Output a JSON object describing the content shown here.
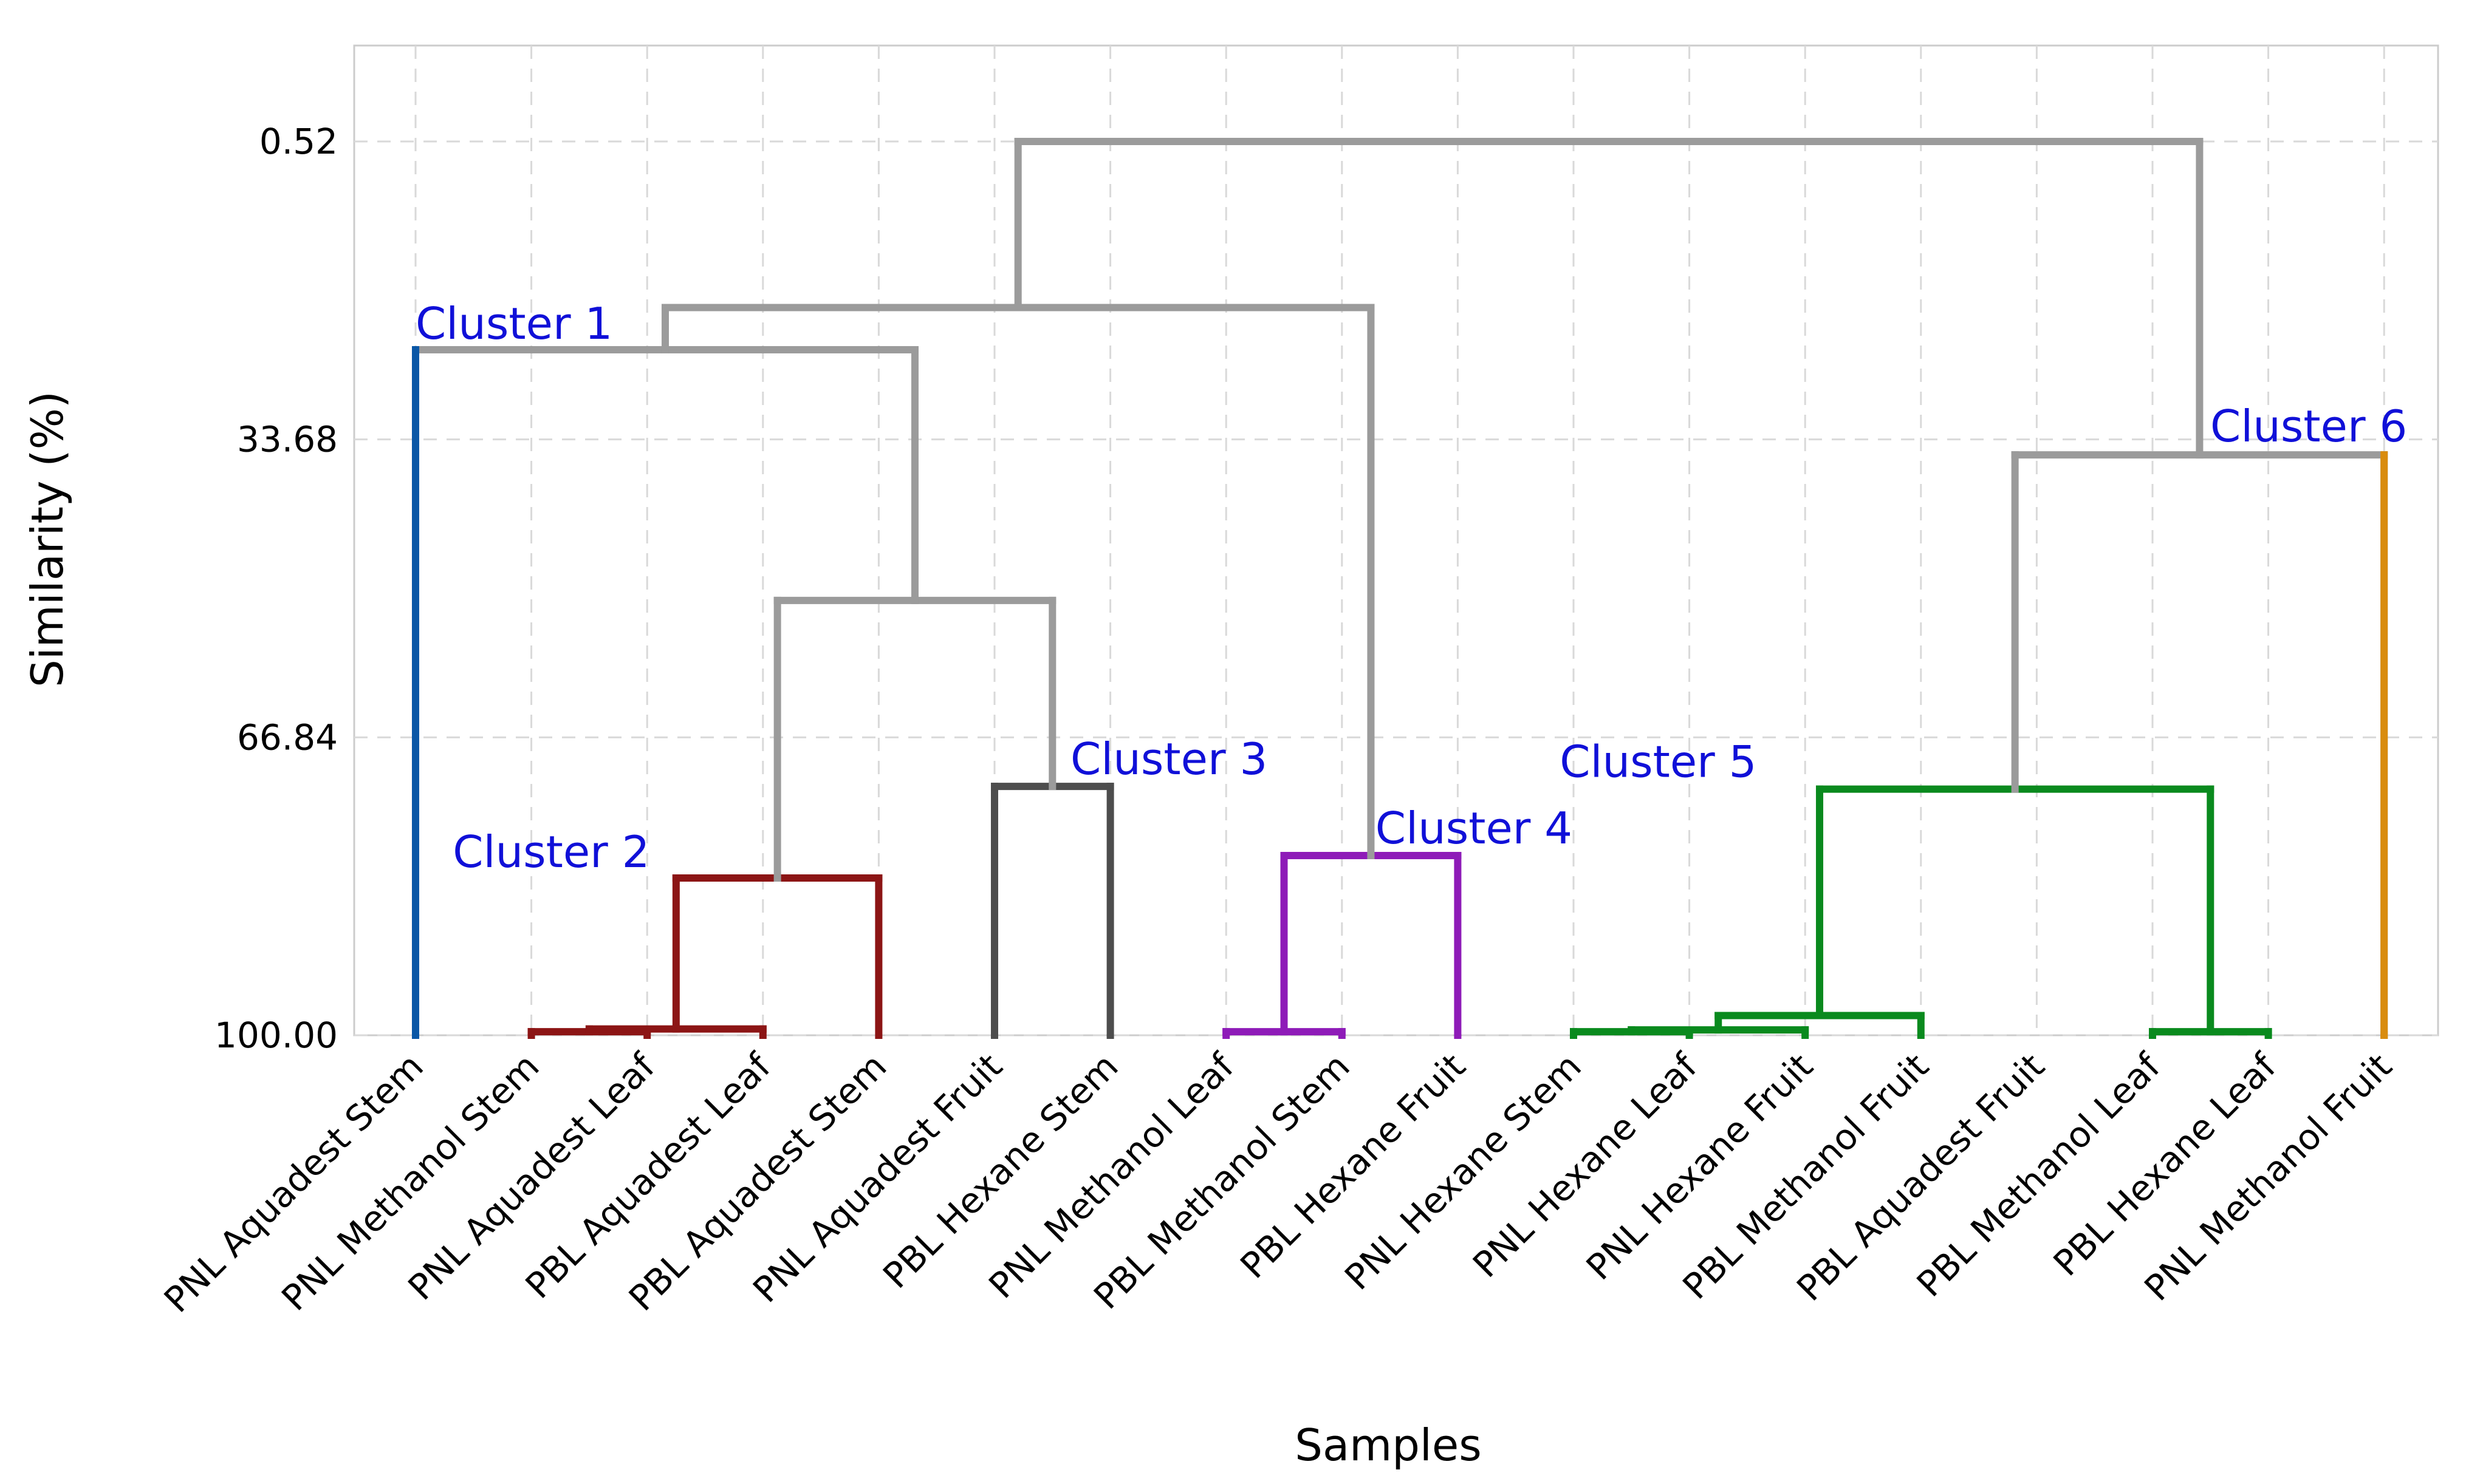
{
  "chart_data": {
    "type": "dendrogram",
    "title": "",
    "xlabel": "Samples",
    "ylabel": "Similarity (%)",
    "ylim": [
      100.0,
      -9.5
    ],
    "yticks": [
      0.52,
      33.68,
      66.84,
      100.0
    ],
    "ytick_labels": [
      "0.52",
      "33.68",
      "66.84",
      "100.00"
    ],
    "grid": true,
    "leaves": [
      "PNL Aquadest Stem",
      "PNL Methanol Stem",
      "PNL Aquadest Leaf",
      "PBL Aquadest Leaf",
      "PBL Aquadest Stem",
      "PNL Aquadest Fruit",
      "PBL Hexane Stem",
      "PNL Methanol Leaf",
      "PBL Methanol Stem",
      "PBL Hexane Fruit",
      "PNL Hexane Stem",
      "PNL Hexane Leaf",
      "PNL Hexane Fruit",
      "PBL Methanol Fruit",
      "PBL Aquadest Fruit",
      "PBL Methanol Leaf",
      "PBL Hexane Leaf",
      "PNL Methanol Fruit"
    ],
    "merges": [
      {
        "id": "m1",
        "a": "L1",
        "b": "L2",
        "similarity": 99.6,
        "color": "#8c1515"
      },
      {
        "id": "m2",
        "a": "m1",
        "b": "L3",
        "similarity": 99.3,
        "color": "#8c1515"
      },
      {
        "id": "m3",
        "a": "m2",
        "b": "L4",
        "similarity": 82.5,
        "color": "#8c1515"
      },
      {
        "id": "m4",
        "a": "L5",
        "b": "L6",
        "similarity": 72.3,
        "color": "#4d4d4d"
      },
      {
        "id": "m5",
        "a": "L7",
        "b": "L8",
        "similarity": 99.6,
        "color": "#8e1bb8"
      },
      {
        "id": "m6",
        "a": "m5",
        "b": "L9",
        "similarity": 80.0,
        "color": "#8e1bb8"
      },
      {
        "id": "m7",
        "a": "L10",
        "b": "L11",
        "similarity": 99.6,
        "color": "#0a8a1e"
      },
      {
        "id": "m8",
        "a": "m7",
        "b": "L12",
        "similarity": 99.4,
        "color": "#0a8a1e"
      },
      {
        "id": "m9",
        "a": "m8",
        "b": "L13",
        "similarity": 97.8,
        "color": "#0a8a1e"
      },
      {
        "id": "m10",
        "a": "L15",
        "b": "L16",
        "similarity": 99.6,
        "color": "#0a8a1e"
      },
      {
        "id": "m11",
        "a": "m9",
        "b": "m10",
        "similarity": 72.6,
        "color": "#0a8a1e"
      },
      {
        "id": "m12",
        "a": "m3",
        "b": "m4",
        "similarity": 51.6,
        "color": "#9b9b9b"
      },
      {
        "id": "m13",
        "a": "L0",
        "b": "m12",
        "similarity": 23.7,
        "color": "#9b9b9b"
      },
      {
        "id": "m14",
        "a": "m13",
        "b": "m6",
        "similarity": 19.0,
        "color": "#9b9b9b"
      },
      {
        "id": "m15",
        "a": "m11",
        "b": "L17",
        "similarity": 35.4,
        "color": "#9b9b9b"
      },
      {
        "id": "m16",
        "a": "m14",
        "b": "m15",
        "similarity": 0.52,
        "color": "#9b9b9b"
      }
    ],
    "leaf_stems": [
      {
        "leaf": 0,
        "color": "#0a57a6"
      },
      {
        "leaf": 17,
        "color": "#d98c0f"
      }
    ],
    "clusters": [
      {
        "label": "Cluster 1",
        "anchor_leaf": 0,
        "similarity": 23.7
      },
      {
        "label": "Cluster 2",
        "anchor_leaf": 2,
        "similarity": 82.5
      },
      {
        "label": "Cluster 3",
        "anchor_leaf": 5,
        "similarity": 72.3
      },
      {
        "label": "Cluster 4",
        "anchor_leaf": 8,
        "similarity": 80.0
      },
      {
        "label": "Cluster 5",
        "anchor_leaf": 12,
        "similarity": 72.6
      },
      {
        "label": "Cluster 6",
        "anchor_leaf": 15,
        "similarity": 35.4
      }
    ],
    "colors": {
      "cluster_label": "#1010d8",
      "link": "#9b9b9b",
      "grid": "#d9d9d9",
      "frame": "#cccccc"
    }
  }
}
